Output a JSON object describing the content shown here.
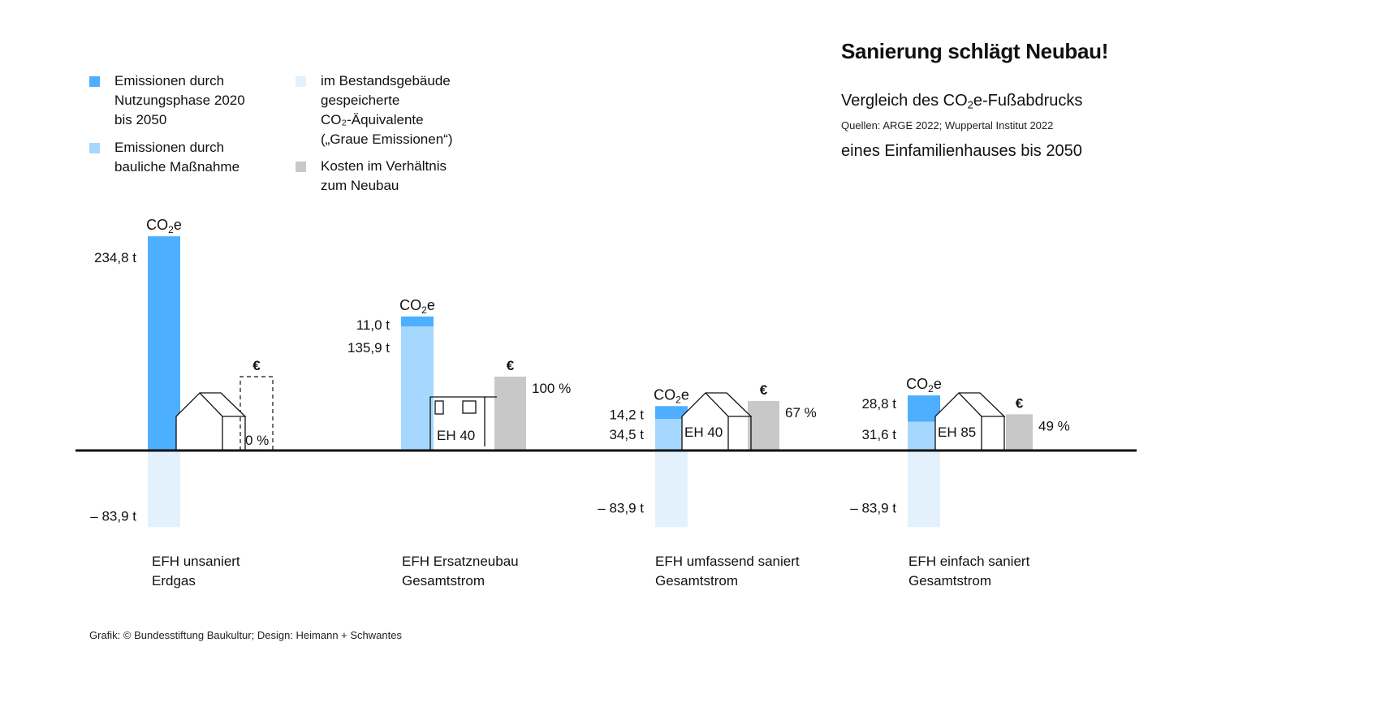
{
  "header": {
    "title": "Sanierung schlägt Neubau!",
    "subtitle_line1_pre": "Vergleich des CO",
    "subtitle_line1_sub": "2",
    "subtitle_line1_post": "e-Fußabdrucks",
    "subtitle_line2": "eines Einfamilienhauses bis 2050",
    "source": "Quellen: ARGE 2022; Wuppertal Institut 2022"
  },
  "legend": [
    {
      "label": "Emissionen durch\nNutzungsphase 2020\nbis 2050",
      "color": "#4DAFFF"
    },
    {
      "label": "Emissionen durch\nbauliche Maßnahme",
      "color": "#A6D8FF"
    },
    {
      "label": "im Bestandsgebäude\ngespeicherte\nCO₂-Äquivalente\n(„Graue Emissionen“)",
      "color": "#E3F1FD"
    },
    {
      "label": "Kosten im Verhältnis\nzum Neubau",
      "color": "#C8C8C8"
    }
  ],
  "credit": "Grafik: © Bundesstiftung Baukultur; Design: Heimann + Schwantes",
  "chart_data": {
    "type": "bar",
    "title": "Sanierung schlägt Neubau!",
    "subtitle": "Vergleich des CO2e-Fußabdrucks eines Einfamilienhauses bis 2050",
    "unit": "t CO2e",
    "co2_label": "CO2e",
    "cost_symbol": "€",
    "categories": [
      {
        "line1": "EFH unsaniert",
        "line2": "Erdgas"
      },
      {
        "line1": "EFH Ersatzneubau",
        "line2": "Gesamtstrom"
      },
      {
        "line1": "EFH umfassend saniert",
        "line2": "Gesamtstrom"
      },
      {
        "line1": "EFH einfach saniert",
        "line2": "Gesamtstrom"
      }
    ],
    "series": [
      {
        "name": "Emissionen durch Nutzungsphase 2020 bis 2050",
        "color": "#4DAFFF",
        "values": [
          234.8,
          11.0,
          14.2,
          28.8
        ],
        "labels": [
          "234,8 t",
          "11,0 t",
          "14,2 t",
          "28,8 t"
        ]
      },
      {
        "name": "Emissionen durch bauliche Maßnahme",
        "color": "#A6D8FF",
        "values": [
          0,
          135.9,
          34.5,
          31.6
        ],
        "labels": [
          "",
          "135,9 t",
          "34,5 t",
          "31,6 t"
        ]
      },
      {
        "name": "im Bestandsgebäude gespeicherte CO2-Äquivalente (Graue Emissionen)",
        "color": "#E3F1FD",
        "values": [
          -83.9,
          0,
          -83.9,
          -83.9
        ],
        "labels": [
          "– 83,9 t",
          "",
          "– 83,9 t",
          "– 83,9 t"
        ]
      },
      {
        "name": "Kosten im Verhältnis zum Neubau",
        "color": "#C8C8C8",
        "unit": "%",
        "values": [
          0,
          100,
          67,
          49
        ],
        "labels": [
          "0 %",
          "100 %",
          "67 %",
          "49 %"
        ]
      }
    ],
    "house_labels": [
      "",
      "EH 40",
      "EH 40",
      "EH 85"
    ],
    "axis_visible": false,
    "grid": false,
    "legend_position": "top-left"
  }
}
